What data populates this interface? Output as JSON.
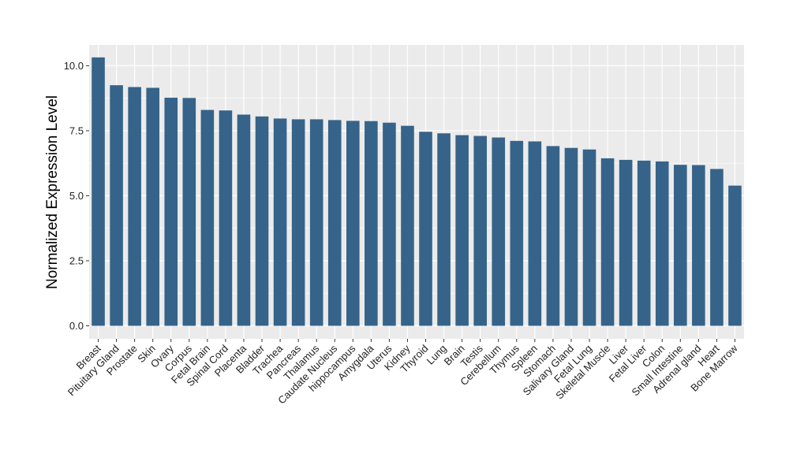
{
  "chart_data": {
    "type": "bar",
    "title": "",
    "xlabel": "",
    "ylabel": "Normalized Expression Level",
    "ylim": [
      -0.5,
      10.8
    ],
    "yticks": [
      0.0,
      2.5,
      5.0,
      7.5,
      10.0
    ],
    "ytick_labels": [
      "0.0",
      "2.5",
      "5.0",
      "7.5",
      "10.0"
    ],
    "grid": true,
    "categories": [
      "Breast",
      "Pituitary Gland",
      "Prostate",
      "Skin",
      "Ovary",
      "Corpus",
      "Fetal Brain",
      "Spinal Cord",
      "Placenta",
      "Bladder",
      "Trachea",
      "Pancreas",
      "Thalamus",
      "Caudate Nucleus",
      "hippocampus",
      "Amygdala",
      "Uterus",
      "Kidney",
      "Thyroid",
      "Lung",
      "Brain",
      "Testis",
      "Cerebellum",
      "Thymus",
      "Spleen",
      "Stomach",
      "Salivary Gland",
      "Fetal Lung",
      "Skeletal Muscle",
      "Liver",
      "Fetal Liver",
      "Colon",
      "Small Intestine",
      "Adrenal gland",
      "Heart",
      "Bone Marrow"
    ],
    "values": [
      10.32,
      9.25,
      9.18,
      9.15,
      8.77,
      8.76,
      8.3,
      8.28,
      8.12,
      8.05,
      7.97,
      7.94,
      7.94,
      7.91,
      7.88,
      7.87,
      7.81,
      7.69,
      7.46,
      7.4,
      7.33,
      7.3,
      7.24,
      7.11,
      7.09,
      6.91,
      6.84,
      6.78,
      6.44,
      6.38,
      6.35,
      6.32,
      6.19,
      6.18,
      6.03,
      5.39
    ]
  },
  "colors": {
    "bar": "#366389",
    "panel_background": "#EBEBEB",
    "grid_major": "#FFFFFF",
    "page_background": "#FFFFFF"
  }
}
